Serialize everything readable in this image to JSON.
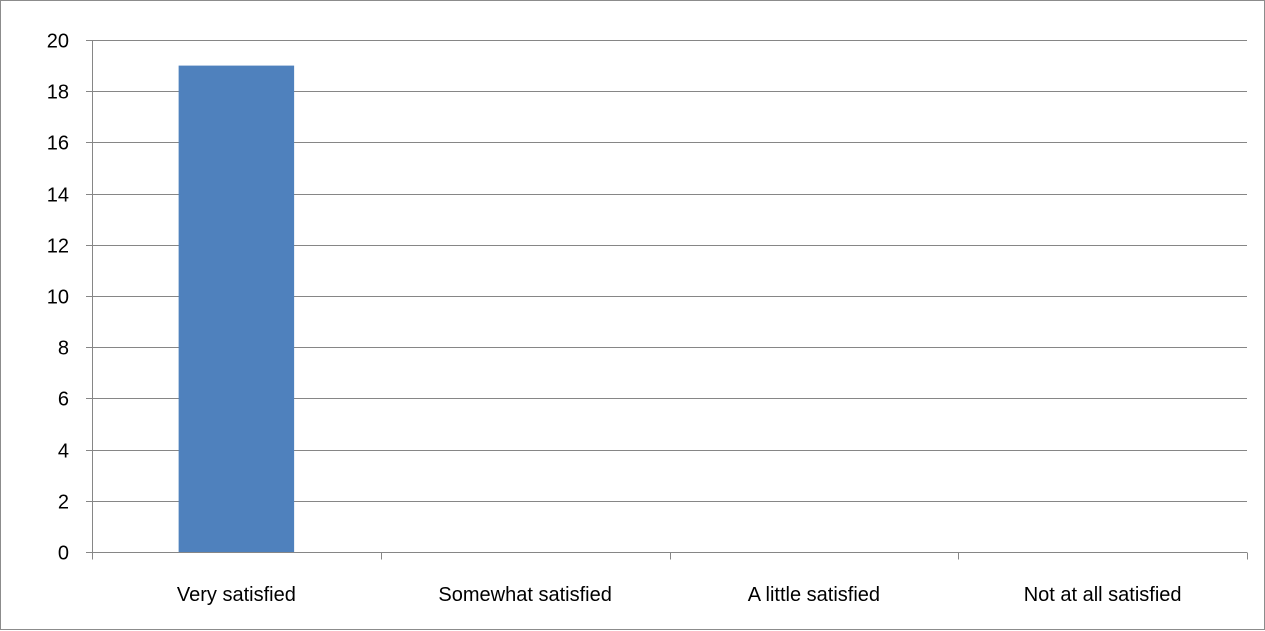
{
  "chart_data": {
    "type": "bar",
    "title": "",
    "xlabel": "",
    "ylabel": "",
    "categories": [
      "Very satisfied",
      "Somewhat satisfied",
      "A little satisfied",
      "Not at all satisfied"
    ],
    "values": [
      19,
      0,
      0,
      0
    ],
    "ylim": [
      0,
      20
    ],
    "yticks": [
      "0",
      "2",
      "4",
      "6",
      "8",
      "10",
      "12",
      "14",
      "16",
      "18",
      "20"
    ],
    "grid": true,
    "legend": "none",
    "bar_color": "#4F81BD"
  }
}
